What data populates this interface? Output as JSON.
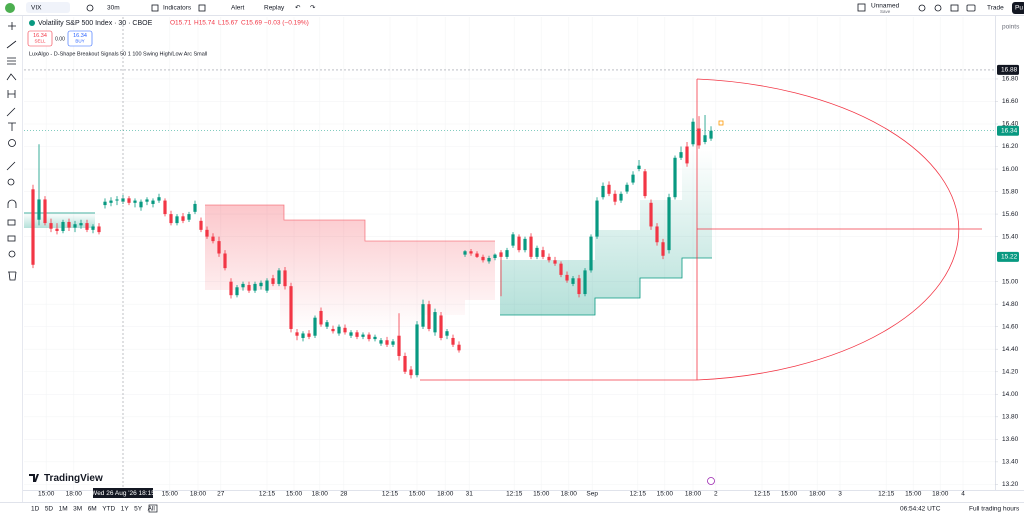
{
  "toolbar": {
    "symbol": "VIX",
    "interval": "30m",
    "indicators": "Indicators",
    "alert": "Alert",
    "replay": "Replay",
    "layout_name": "Unnamed",
    "layout_state": "Save",
    "trade": "Trade",
    "publish": "Pu"
  },
  "legend": {
    "title": "Volatility S&P 500 Index · 30 · CBOE",
    "open": "O15.71",
    "high": "H15.74",
    "low": "L15.67",
    "close": "C15.69",
    "change": "−0.03 (−0.19%)",
    "sell_price": "16.34",
    "sell": "SELL",
    "spread": "0.00",
    "buy_price": "16.34",
    "buy": "BUY",
    "indicator": "LuxAlgo - D-Shape Breakout Signals 50 1 100 Swing High/Low Arc Small"
  },
  "chart_data": {
    "type": "candlestick",
    "y_unit": "points",
    "up_color": "#089981",
    "down_color": "#f23645",
    "grid": true,
    "xlim": [
      -1.5,
      160.33
    ],
    "ylim": [
      13.15,
      17.35
    ],
    "yticks": [
      {
        "value": 13.2,
        "label": "13.20"
      },
      {
        "value": 13.4,
        "label": "13.40"
      },
      {
        "value": 13.6,
        "label": "13.60"
      },
      {
        "value": 13.8,
        "label": "13.80"
      },
      {
        "value": 14,
        "label": "14.00"
      },
      {
        "value": 14.2,
        "label": "14.20"
      },
      {
        "value": 14.4,
        "label": "14.40"
      },
      {
        "value": 14.6,
        "label": "14.60"
      },
      {
        "value": 14.8,
        "label": "14.80"
      },
      {
        "value": 15,
        "label": "15.00"
      },
      {
        "value": 15.4,
        "label": "15.40"
      },
      {
        "value": 15.6,
        "label": "15.60"
      },
      {
        "value": 15.8,
        "label": "15.80"
      },
      {
        "value": 16,
        "label": "16.00"
      },
      {
        "value": 16.2,
        "label": "16.20"
      },
      {
        "value": 16.4,
        "label": "16.40"
      },
      {
        "value": 16.6,
        "label": "16.60"
      },
      {
        "value": 16.8,
        "label": "16.80"
      }
    ],
    "xticks": [
      {
        "value": 2.2,
        "label": "15:00"
      },
      {
        "value": 6.8,
        "label": "18:00"
      },
      {
        "value": 22.8,
        "label": "15:00"
      },
      {
        "value": 27.5,
        "label": "18:00"
      },
      {
        "value": 31.3,
        "label": "27"
      },
      {
        "value": 39,
        "label": "12:15"
      },
      {
        "value": 43.5,
        "label": "15:00"
      },
      {
        "value": 47.8,
        "label": "18:00"
      },
      {
        "value": 51.8,
        "label": "28"
      },
      {
        "value": 59.5,
        "label": "12:15"
      },
      {
        "value": 64,
        "label": "15:00"
      },
      {
        "value": 68.7,
        "label": "18:00"
      },
      {
        "value": 72.7,
        "label": "31"
      },
      {
        "value": 80.2,
        "label": "12:15"
      },
      {
        "value": 84.7,
        "label": "15:00"
      },
      {
        "value": 89.3,
        "label": "18:00"
      },
      {
        "value": 93.2,
        "label": "Sep"
      },
      {
        "value": 100.8,
        "label": "12:15"
      },
      {
        "value": 105.3,
        "label": "15:00"
      },
      {
        "value": 110,
        "label": "18:00"
      },
      {
        "value": 113.8,
        "label": "2"
      },
      {
        "value": 121.5,
        "label": "12:15"
      },
      {
        "value": 126,
        "label": "15:00"
      },
      {
        "value": 130.7,
        "label": "18:00"
      },
      {
        "value": 134.5,
        "label": "3"
      },
      {
        "value": 142.2,
        "label": "12:15"
      },
      {
        "value": 146.7,
        "label": "15:00"
      },
      {
        "value": 151.2,
        "label": "18:00"
      },
      {
        "value": 155,
        "label": "4"
      }
    ],
    "crosshair_time": {
      "value": 15,
      "label": "Wed 26 Aug '26  18:15"
    },
    "crosshair_price": 16.88,
    "last_price": 16.34,
    "level_price": 15.22,
    "open": [
      15.82,
      15.55,
      15.73,
      15.52,
      15.47,
      15.45,
      15.53,
      15.48,
      15.5,
      15.52,
      15.46,
      15.49,
      15.68,
      15.7,
      15.72,
      15.71,
      15.74,
      15.7,
      15.66,
      15.71,
      15.69,
      15.72,
      15.72,
      15.6,
      15.52,
      15.58,
      15.55,
      15.62,
      15.54,
      15.46,
      15.4,
      15.36,
      15.25,
      15.0,
      14.88,
      14.95,
      14.97,
      14.92,
      14.96,
      14.92,
      15.03,
      14.98,
      15.1,
      14.96,
      14.55,
      14.5,
      14.54,
      14.52,
      14.74,
      14.6,
      14.58,
      14.54,
      14.59,
      14.52,
      14.55,
      14.51,
      14.53,
      14.49,
      14.45,
      14.48,
      14.44,
      14.52,
      14.34,
      14.22,
      14.17,
      14.6,
      14.8,
      14.55,
      14.7,
      14.52,
      14.5,
      14.44,
      15.24,
      15.27,
      15.25,
      15.22,
      15.18,
      15.21,
      15.26,
      15.22,
      15.32,
      15.4,
      15.28,
      15.4,
      15.22,
      15.28,
      15.22,
      15.19,
      15.16,
      15.06,
      14.98,
      15.03,
      14.89,
      15.1,
      15.4,
      15.75,
      15.86,
      15.78,
      15.72,
      15.8,
      15.88,
      16.0,
      15.98,
      15.7,
      15.49,
      15.35,
      15.28,
      15.75,
      16.1,
      16.2,
      16.22,
      16.36,
      16.24,
      16.27
    ],
    "high": [
      15.86,
      16.22,
      15.76,
      15.56,
      15.52,
      15.55,
      15.56,
      15.54,
      15.55,
      15.55,
      15.51,
      15.52,
      15.74,
      15.75,
      15.76,
      15.77,
      15.76,
      15.74,
      15.73,
      15.75,
      15.74,
      15.78,
      15.74,
      15.63,
      15.6,
      15.61,
      15.62,
      15.72,
      15.57,
      15.49,
      15.43,
      15.4,
      15.28,
      15.03,
      14.97,
      15.0,
      15.0,
      15.0,
      15.01,
      15.03,
      15.06,
      15.12,
      15.13,
      14.99,
      14.58,
      14.56,
      14.57,
      14.7,
      14.77,
      14.66,
      14.61,
      14.62,
      14.62,
      14.57,
      14.57,
      14.55,
      14.55,
      14.53,
      14.5,
      14.51,
      14.49,
      14.72,
      14.37,
      14.25,
      14.65,
      14.84,
      14.83,
      14.76,
      14.73,
      14.58,
      14.53,
      14.47,
      15.28,
      15.29,
      15.27,
      15.24,
      15.23,
      15.25,
      15.28,
      15.3,
      15.44,
      15.42,
      15.4,
      15.43,
      15.32,
      15.31,
      15.25,
      15.22,
      15.18,
      15.09,
      15.05,
      15.06,
      15.12,
      15.42,
      15.75,
      15.88,
      15.89,
      15.81,
      15.8,
      15.88,
      15.98,
      16.08,
      16.0,
      15.73,
      15.52,
      15.38,
      15.78,
      16.12,
      16.2,
      16.24,
      16.45,
      16.47,
      16.48,
      16.38
    ],
    "low": [
      15.12,
      15.5,
      15.5,
      15.44,
      15.42,
      15.43,
      15.45,
      15.44,
      15.47,
      15.44,
      15.43,
      15.42,
      15.65,
      15.67,
      15.68,
      15.69,
      15.68,
      15.66,
      15.63,
      15.68,
      15.66,
      15.7,
      15.58,
      15.5,
      15.5,
      15.52,
      15.53,
      15.6,
      15.44,
      15.38,
      15.34,
      15.22,
      15.1,
      14.85,
      14.86,
      14.92,
      14.9,
      14.9,
      14.93,
      14.9,
      14.96,
      14.96,
      14.93,
      14.55,
      14.48,
      14.47,
      14.49,
      14.5,
      14.6,
      14.58,
      14.54,
      14.52,
      14.53,
      14.5,
      14.49,
      14.49,
      14.47,
      14.47,
      14.43,
      14.42,
      14.42,
      14.3,
      14.18,
      14.14,
      14.15,
      14.58,
      14.56,
      14.52,
      14.48,
      14.49,
      14.42,
      14.37,
      15.22,
      15.23,
      15.21,
      15.17,
      15.16,
      15.19,
      14.87,
      15.2,
      15.3,
      15.26,
      15.26,
      15.2,
      15.2,
      15.2,
      15.17,
      15.14,
      15.04,
      14.99,
      14.96,
      14.86,
      14.87,
      15.08,
      15.38,
      15.73,
      15.76,
      15.68,
      15.7,
      15.78,
      15.86,
      15.98,
      15.74,
      15.46,
      15.32,
      15.2,
      15.25,
      15.73,
      16.08,
      16.02,
      16.2,
      16.18,
      16.22,
      16.25
    ],
    "close": [
      15.15,
      15.73,
      15.52,
      15.47,
      15.45,
      15.53,
      15.48,
      15.51,
      15.52,
      15.46,
      15.49,
      15.44,
      15.71,
      15.72,
      15.73,
      15.74,
      15.7,
      15.72,
      15.71,
      15.73,
      15.72,
      15.75,
      15.6,
      15.52,
      15.58,
      15.54,
      15.6,
      15.69,
      15.46,
      15.4,
      15.36,
      15.25,
      15.12,
      14.88,
      14.95,
      14.98,
      14.92,
      14.98,
      14.99,
      15.01,
      14.98,
      15.1,
      14.96,
      14.58,
      14.52,
      14.54,
      14.51,
      14.68,
      14.62,
      14.64,
      14.56,
      14.6,
      14.55,
      14.55,
      14.51,
      14.53,
      14.49,
      14.51,
      14.48,
      14.44,
      14.47,
      14.34,
      14.2,
      14.17,
      14.62,
      14.8,
      14.58,
      14.73,
      14.5,
      14.56,
      14.44,
      14.39,
      15.27,
      15.25,
      15.22,
      15.19,
      15.21,
      15.24,
      15.22,
      15.28,
      15.42,
      15.28,
      15.38,
      15.22,
      15.3,
      15.22,
      15.19,
      15.16,
      15.06,
      15.01,
      15.03,
      14.89,
      15.1,
      15.4,
      15.72,
      15.85,
      15.78,
      15.71,
      15.78,
      15.86,
      15.95,
      16.03,
      15.76,
      15.49,
      15.35,
      15.23,
      15.75,
      16.1,
      16.15,
      16.05,
      16.42,
      16.21,
      16.3,
      16.34
    ]
  },
  "bottom_bar": {
    "ranges": [
      "1D",
      "5D",
      "1M",
      "3M",
      "6M",
      "YTD",
      "1Y",
      "5Y",
      "All"
    ],
    "clock": "06:54:42 UTC",
    "session": "Full trading hours",
    "brand": "TradingView"
  }
}
